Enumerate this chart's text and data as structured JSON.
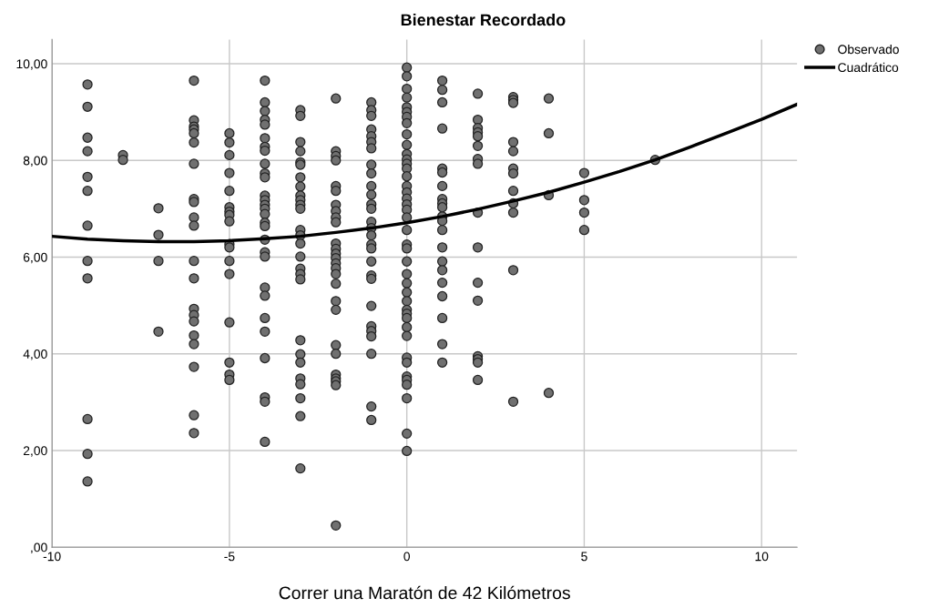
{
  "chart_data": {
    "type": "scatter",
    "title": "Bienestar Recordado",
    "xlabel": "Correr una Maratón de 42 Kilómetros",
    "xlim": [
      -10,
      11
    ],
    "xticks": [
      -10,
      -5,
      0,
      5,
      10
    ],
    "ylim": [
      0,
      10.5
    ],
    "yticks": [
      {
        "value": 0,
        "label": ",00"
      },
      {
        "value": 2,
        "label": "2,00"
      },
      {
        "value": 4,
        "label": "4,00"
      },
      {
        "value": 6,
        "label": "6,00"
      },
      {
        "value": 8,
        "label": "8,00"
      },
      {
        "value": 10,
        "label": "10,00"
      }
    ],
    "grid": true,
    "legend": "top right",
    "marker": "circle",
    "series": [
      {
        "name": "Observado",
        "color": "#707070",
        "x": [
          -9,
          -9,
          -9,
          -9,
          -9,
          -9,
          -9,
          -9,
          -9,
          -9,
          -9,
          -9,
          -8,
          -8,
          -7,
          -7,
          -7,
          -7,
          -6,
          -6,
          -6,
          -6,
          -6,
          -6,
          -6,
          -6,
          -6,
          -6,
          -6,
          -6,
          -6,
          -6,
          -6,
          -6,
          -6,
          -6,
          -6,
          -6,
          -6,
          -5,
          -5,
          -5,
          -5,
          -5,
          -5,
          -5,
          -5,
          -5,
          -5,
          -5,
          -5,
          -5,
          -5,
          -5,
          -5,
          -5,
          -4,
          -4,
          -4,
          -4,
          -4,
          -4,
          -4,
          -4,
          -4,
          -4,
          -4,
          -4,
          -4,
          -4,
          -4,
          -4,
          -4,
          -4,
          -4,
          -4,
          -4,
          -4,
          -4,
          -4,
          -4,
          -4,
          -4,
          -4,
          -4,
          -3,
          -3,
          -3,
          -3,
          -3,
          -3,
          -3,
          -3,
          -3,
          -3,
          -3,
          -3,
          -3,
          -3,
          -3,
          -3,
          -3,
          -3,
          -3,
          -3,
          -3,
          -3,
          -3,
          -3,
          -3,
          -3,
          -3,
          -2,
          -2,
          -2,
          -2,
          -2,
          -2,
          -2,
          -2,
          -2,
          -2,
          -2,
          -2,
          -2,
          -2,
          -2,
          -2,
          -2,
          -2,
          -2,
          -2,
          -2,
          -2,
          -2,
          -2,
          -2,
          -2,
          -2,
          -1,
          -1,
          -1,
          -1,
          -1,
          -1,
          -1,
          -1,
          -1,
          -1,
          -1,
          -1,
          -1,
          -1,
          -1,
          -1,
          -1,
          -1,
          -1,
          -1,
          -1,
          -1,
          -1,
          -1,
          -1,
          -1,
          -1,
          -1,
          0,
          0,
          0,
          0,
          0,
          0,
          0,
          0,
          0,
          0,
          0,
          0,
          0,
          0,
          0,
          0,
          0,
          0,
          0,
          0,
          0,
          0,
          0,
          0,
          0,
          0,
          0,
          0,
          0,
          0,
          0,
          0,
          0,
          0,
          0,
          0,
          0,
          0,
          0,
          0,
          0,
          0,
          1,
          1,
          1,
          1,
          1,
          1,
          1,
          1,
          1,
          1,
          1,
          1,
          1,
          1,
          1,
          1,
          1,
          1,
          1,
          1,
          1,
          2,
          2,
          2,
          2,
          2,
          2,
          2,
          2,
          2,
          2,
          2,
          2,
          2,
          2,
          2,
          2,
          3,
          3,
          3,
          3,
          3,
          3,
          3,
          3,
          3,
          3,
          3,
          3,
          4,
          4,
          4,
          4,
          5,
          5,
          5,
          5,
          7
        ],
        "values": [
          9.57,
          9.11,
          8.47,
          8.19,
          7.66,
          7.37,
          6.65,
          5.92,
          5.56,
          2.65,
          1.93,
          1.36,
          8.11,
          8.01,
          7.01,
          6.46,
          5.92,
          4.46,
          9.65,
          8.83,
          8.7,
          8.64,
          8.56,
          8.37,
          7.93,
          7.2,
          7.14,
          6.82,
          6.65,
          5.92,
          5.56,
          4.93,
          4.8,
          4.67,
          4.38,
          4.2,
          3.73,
          2.73,
          2.36,
          8.56,
          8.37,
          8.11,
          7.74,
          7.37,
          7.03,
          6.94,
          6.87,
          6.74,
          6.27,
          6.2,
          5.92,
          5.65,
          4.65,
          3.82,
          3.57,
          3.46,
          9.65,
          9.2,
          9.02,
          8.84,
          8.74,
          8.46,
          8.28,
          8.2,
          7.93,
          7.73,
          7.65,
          7.27,
          7.18,
          7.08,
          7.0,
          6.89,
          6.71,
          6.64,
          6.36,
          6.1,
          6.01,
          5.37,
          5.2,
          4.74,
          4.46,
          3.91,
          3.1,
          3.01,
          2.18,
          9.04,
          8.92,
          8.38,
          8.19,
          7.96,
          7.91,
          7.65,
          7.46,
          7.27,
          7.18,
          7.08,
          7.0,
          6.56,
          6.45,
          6.28,
          6.01,
          5.76,
          5.65,
          5.54,
          4.28,
          3.99,
          3.82,
          3.49,
          3.37,
          3.08,
          2.71,
          1.63,
          9.28,
          8.19,
          8.09,
          8.0,
          7.47,
          7.37,
          7.08,
          6.95,
          6.82,
          6.72,
          6.28,
          6.17,
          6.07,
          5.98,
          5.87,
          5.77,
          5.65,
          5.45,
          5.09,
          4.91,
          4.18,
          4.0,
          3.57,
          3.49,
          3.43,
          3.35,
          0.45,
          9.2,
          9.04,
          8.92,
          8.64,
          8.5,
          8.38,
          8.25,
          7.91,
          7.73,
          7.47,
          7.29,
          7.09,
          7.0,
          6.73,
          6.6,
          6.45,
          6.26,
          6.18,
          5.91,
          5.62,
          5.55,
          4.99,
          4.57,
          4.47,
          4.36,
          4.0,
          2.91,
          2.63,
          9.92,
          9.74,
          9.48,
          9.3,
          9.1,
          9.0,
          8.9,
          8.77,
          8.54,
          8.32,
          8.13,
          8.02,
          7.93,
          7.83,
          7.67,
          7.47,
          7.34,
          7.21,
          7.09,
          6.98,
          6.82,
          6.56,
          6.26,
          6.18,
          5.91,
          5.65,
          5.46,
          5.27,
          5.09,
          4.91,
          4.83,
          4.74,
          4.55,
          4.37,
          3.92,
          3.82,
          3.53,
          3.46,
          3.36,
          3.08,
          2.35,
          1.99,
          9.65,
          9.46,
          9.2,
          8.66,
          7.83,
          7.75,
          7.47,
          7.2,
          7.11,
          7.03,
          6.84,
          6.75,
          6.56,
          6.2,
          5.91,
          5.73,
          5.47,
          5.19,
          4.74,
          4.2,
          3.82,
          9.38,
          8.84,
          8.67,
          8.58,
          8.5,
          8.3,
          8.03,
          7.93,
          6.92,
          6.2,
          5.47,
          5.1,
          3.95,
          3.89,
          3.82,
          3.46,
          9.31,
          9.25,
          9.19,
          8.38,
          8.19,
          7.83,
          7.73,
          7.37,
          7.11,
          6.92,
          5.73,
          3.01,
          9.28,
          8.56,
          7.28,
          3.19,
          7.74,
          7.18,
          6.92,
          6.56,
          8.01
        ]
      },
      {
        "name": "Cuadrático",
        "type": "line",
        "color": "#000000",
        "marker": "none",
        "x": [
          -10,
          -9,
          -8,
          -7,
          -6,
          -5,
          -4,
          -3,
          -2,
          -1,
          0,
          1,
          2,
          3,
          4,
          5,
          6,
          7,
          8,
          9,
          10,
          11
        ],
        "values": [
          6.43,
          6.37,
          6.34,
          6.32,
          6.32,
          6.34,
          6.38,
          6.43,
          6.51,
          6.6,
          6.71,
          6.84,
          6.99,
          7.16,
          7.34,
          7.55,
          7.77,
          8.01,
          8.28,
          8.56,
          8.85,
          9.16
        ]
      }
    ]
  }
}
